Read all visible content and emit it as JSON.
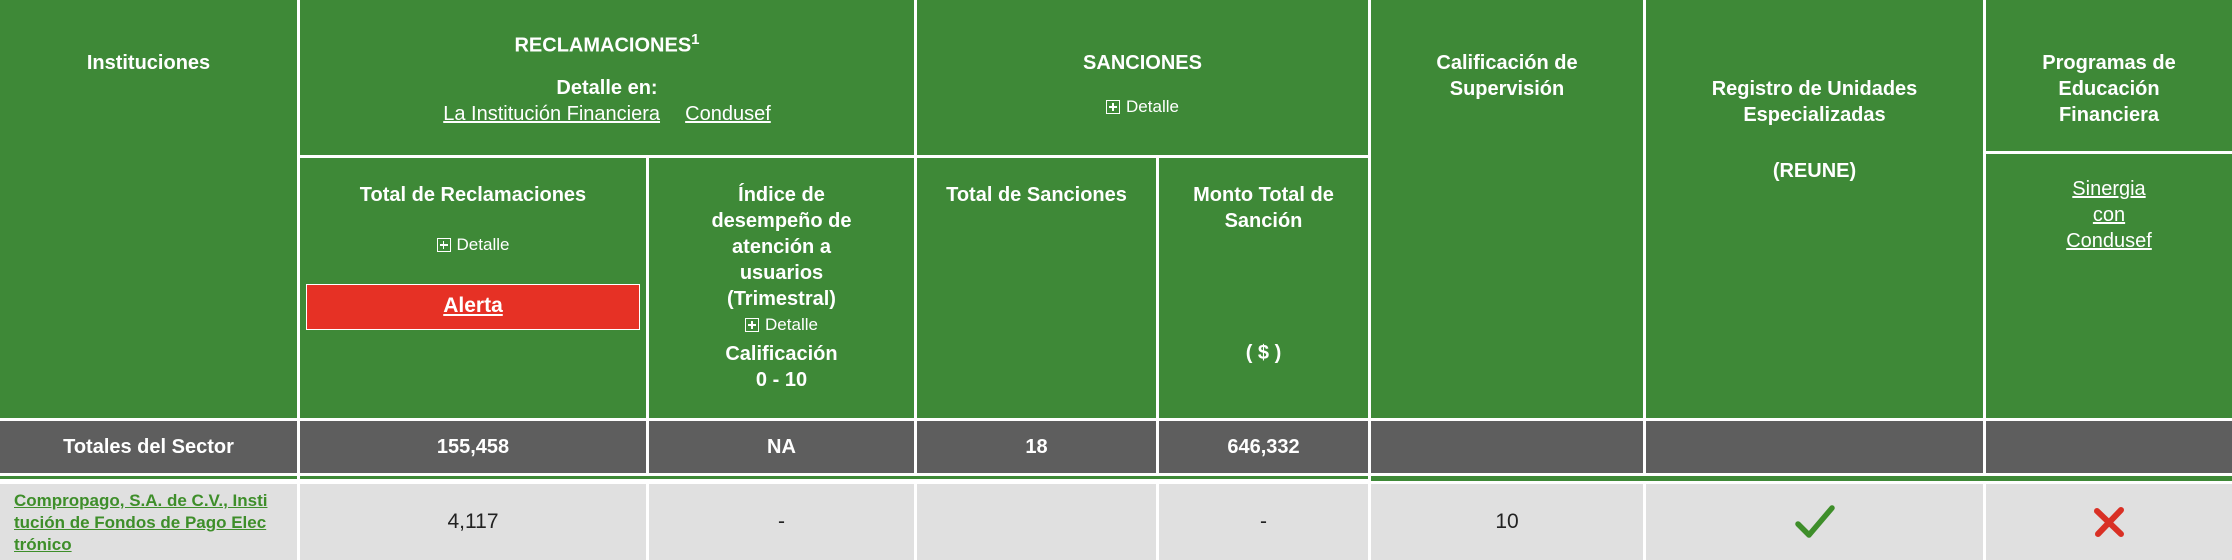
{
  "header": {
    "instituciones": "Instituciones",
    "reclamaciones": "RECLAMACIONES",
    "reclamaciones_sup": "1",
    "detalle_en": "Detalle en:",
    "link_institucion": "La Institución Financiera",
    "link_condusef": "Condusef",
    "sanciones": "SANCIONES",
    "detalle": "Detalle",
    "calificacion_supervision": "Calificación de Supervisión",
    "reune_title": "Registro de Unidades Especializadas",
    "reune_abbr": "(REUNE)",
    "programas": "Programas de Educación Financiera",
    "sinergia_line1": "Sinergia",
    "sinergia_line2": "con",
    "sinergia_line3": "Condusef",
    "total_reclamaciones": "Total de Reclamaciones",
    "alerta": "Alerta",
    "indice_line1": "Índice de",
    "indice_line2": "desempeño de",
    "indice_line3": "atención a",
    "indice_line4": "usuarios",
    "indice_line5": "(Trimestral)",
    "calificacion": "Calificación",
    "rango": "0 - 10",
    "total_sanciones": "Total de Sanciones",
    "monto_total": "Monto Total de Sanción",
    "moneda": "( $ )"
  },
  "totals": {
    "label": "Totales del Sector",
    "reclamaciones": "155,458",
    "indice": "NA",
    "sanciones": "18",
    "monto": "646,332"
  },
  "rows": [
    {
      "institucion": "Compropago, S.A. de C.V., Institución de Fondos de Pago Electrónico",
      "institucion_l1": "Compropago, S.A. de C.V., Insti",
      "institucion_l2": "tución de Fondos de Pago Elec",
      "institucion_l3": "trónico",
      "reclamaciones": "4,117",
      "indice": "-",
      "sanciones": "",
      "monto": "-",
      "calificacion": "10",
      "reune": "check-icon",
      "programas": "cross-icon"
    }
  ],
  "colors": {
    "header_green": "#3e8937",
    "totals_gray": "#5e5e5e",
    "row_gray": "#e0e0e0",
    "alert_red": "#e63125",
    "check_green": "#3e8e2a",
    "cross_red": "#d93025"
  }
}
